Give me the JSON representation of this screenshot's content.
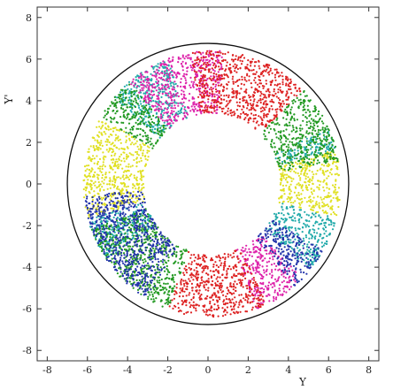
{
  "chart_data": {
    "type": "scatter",
    "title": "",
    "xlabel": "Y",
    "ylabel": "Y'",
    "xlim": [
      -8.5,
      8.5
    ],
    "ylim": [
      -8.5,
      8.5
    ],
    "x_ticks": [
      -8,
      -6,
      -4,
      -2,
      0,
      2,
      4,
      6,
      8
    ],
    "y_ticks": [
      -8,
      -6,
      -4,
      -2,
      0,
      2,
      4,
      6,
      8
    ],
    "grid": false,
    "legend": "none",
    "boundary_circle": {
      "center": [
        0,
        0
      ],
      "radius": 7.0
    },
    "annulus": {
      "center": [
        0.2,
        0.0
      ],
      "inner_radius": 3.4,
      "outer_radius": 6.4
    },
    "series": [
      {
        "color": "#e0e022",
        "arc_deg": [
          [
            150,
            195
          ],
          [
            -15,
            15
          ]
        ]
      },
      {
        "color": "#22aaaa",
        "arc_deg": [
          [
            110,
            140
          ],
          [
            195,
            215
          ],
          [
            -40,
            -15
          ],
          [
            15,
            25
          ]
        ]
      },
      {
        "color": "#dd22aa",
        "arc_deg": [
          [
            85,
            130
          ],
          [
            -70,
            -45
          ]
        ]
      },
      {
        "color": "#dd2222",
        "arc_deg": [
          [
            45,
            100
          ],
          [
            -110,
            -85
          ],
          [
            -85,
            -65
          ]
        ]
      },
      {
        "color": "#229922",
        "arc_deg": [
          [
            10,
            45
          ],
          [
            -160,
            -110
          ],
          [
            130,
            150
          ]
        ]
      },
      {
        "color": "#2233aa",
        "arc_deg": [
          [
            185,
            215
          ],
          [
            215,
            240
          ],
          [
            -50,
            -30
          ]
        ]
      }
    ]
  }
}
